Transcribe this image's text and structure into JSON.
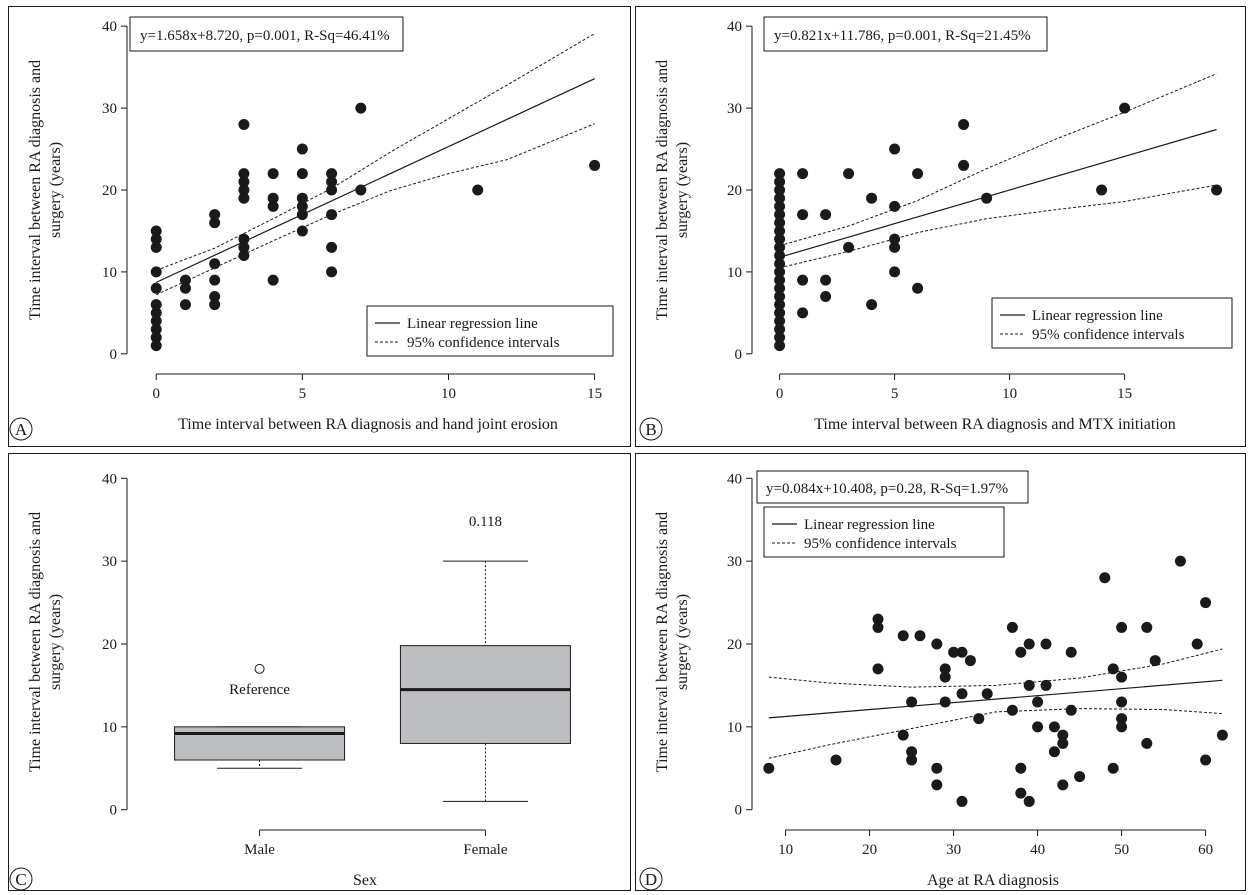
{
  "chart_data": [
    {
      "panel": "A",
      "type": "scatter",
      "equation": "y=1.658x+8.720, p=0.001, R-Sq=46.41%",
      "xlabel": "Time interval between RA diagnosis and hand joint erosion",
      "ylabel_line1": "Time interval between RA diagnosis and",
      "ylabel_line2": "surgery (years)",
      "xlim": [
        -1,
        15.8
      ],
      "ylim": [
        -1,
        41
      ],
      "xticks": [
        0,
        5,
        10,
        15
      ],
      "yticks": [
        0,
        10,
        20,
        30,
        40
      ],
      "legend": {
        "position": "bottom-right",
        "entries": [
          "Linear regression line",
          "95% confidence intervals"
        ]
      },
      "points": [
        [
          0,
          1
        ],
        [
          0,
          2
        ],
        [
          0,
          3
        ],
        [
          0,
          4
        ],
        [
          0,
          5
        ],
        [
          0,
          6
        ],
        [
          0,
          8
        ],
        [
          0,
          10
        ],
        [
          0,
          13
        ],
        [
          0,
          14
        ],
        [
          0,
          15
        ],
        [
          1,
          6
        ],
        [
          1,
          8
        ],
        [
          1,
          9
        ],
        [
          2,
          6
        ],
        [
          2,
          7
        ],
        [
          2,
          9
        ],
        [
          2,
          11
        ],
        [
          2,
          16
        ],
        [
          2,
          17
        ],
        [
          3,
          12
        ],
        [
          3,
          13
        ],
        [
          3,
          14
        ],
        [
          3,
          19
        ],
        [
          3,
          20
        ],
        [
          3,
          21
        ],
        [
          3,
          22
        ],
        [
          3,
          28
        ],
        [
          4,
          9
        ],
        [
          4,
          18
        ],
        [
          4,
          19
        ],
        [
          4,
          22
        ],
        [
          5,
          15
        ],
        [
          5,
          17
        ],
        [
          5,
          18
        ],
        [
          5,
          19
        ],
        [
          5,
          22
        ],
        [
          5,
          25
        ],
        [
          6,
          10
        ],
        [
          6,
          13
        ],
        [
          6,
          17
        ],
        [
          6,
          20
        ],
        [
          6,
          21
        ],
        [
          6,
          22
        ],
        [
          7,
          20
        ],
        [
          7,
          30
        ],
        [
          11,
          20
        ],
        [
          15,
          23
        ]
      ],
      "fit": {
        "slope": 1.658,
        "intercept": 8.72
      },
      "ci_lower": [
        [
          0,
          7.2
        ],
        [
          2,
          10.5
        ],
        [
          4,
          13.8
        ],
        [
          6,
          17.0
        ],
        [
          8,
          19.9
        ],
        [
          10,
          22.0
        ],
        [
          12,
          23.7
        ],
        [
          15,
          28.1
        ]
      ],
      "ci_upper": [
        [
          0,
          10.2
        ],
        [
          2,
          12.9
        ],
        [
          4,
          16.5
        ],
        [
          6,
          20.2
        ],
        [
          8,
          24.6
        ],
        [
          10,
          28.7
        ],
        [
          12,
          32.8
        ],
        [
          15,
          39.1
        ]
      ]
    },
    {
      "panel": "B",
      "type": "scatter",
      "equation": "y=0.821x+11.786, p=0.001, R-Sq=21.45%",
      "xlabel": "Time interval between RA diagnosis and MTX initiation",
      "ylabel_line1": "Time interval between RA diagnosis and",
      "ylabel_line2": "surgery (years)",
      "xlim": [
        -1.2,
        19.8
      ],
      "ylim": [
        -1,
        41
      ],
      "xticks": [
        0,
        5,
        10,
        15
      ],
      "yticks": [
        0,
        10,
        20,
        30,
        40
      ],
      "legend": {
        "position": "bottom-right",
        "entries": [
          "Linear regression line",
          "95% confidence intervals"
        ]
      },
      "points": [
        [
          0,
          1
        ],
        [
          0,
          2
        ],
        [
          0,
          3
        ],
        [
          0,
          4
        ],
        [
          0,
          5
        ],
        [
          0,
          6
        ],
        [
          0,
          7
        ],
        [
          0,
          8
        ],
        [
          0,
          9
        ],
        [
          0,
          10
        ],
        [
          0,
          11
        ],
        [
          0,
          12
        ],
        [
          0,
          13
        ],
        [
          0,
          14
        ],
        [
          0,
          15
        ],
        [
          0,
          16
        ],
        [
          0,
          17
        ],
        [
          0,
          18
        ],
        [
          0,
          19
        ],
        [
          0,
          20
        ],
        [
          0,
          21
        ],
        [
          0,
          22
        ],
        [
          1,
          5
        ],
        [
          1,
          9
        ],
        [
          1,
          17
        ],
        [
          1,
          22
        ],
        [
          2,
          7
        ],
        [
          2,
          9
        ],
        [
          2,
          17
        ],
        [
          3,
          13
        ],
        [
          3,
          22
        ],
        [
          4,
          6
        ],
        [
          4,
          19
        ],
        [
          5,
          10
        ],
        [
          5,
          13
        ],
        [
          5,
          14
        ],
        [
          5,
          18
        ],
        [
          5,
          25
        ],
        [
          6,
          8
        ],
        [
          6,
          22
        ],
        [
          8,
          23
        ],
        [
          8,
          28
        ],
        [
          9,
          19
        ],
        [
          14,
          20
        ],
        [
          15,
          30
        ],
        [
          19,
          20
        ]
      ],
      "fit": {
        "slope": 0.821,
        "intercept": 11.786
      },
      "ci_lower": [
        [
          0,
          10.5
        ],
        [
          3,
          12.5
        ],
        [
          6,
          14.8
        ],
        [
          9,
          16.5
        ],
        [
          12,
          17.6
        ],
        [
          15,
          18.6
        ],
        [
          19,
          20.6
        ]
      ],
      "ci_upper": [
        [
          0,
          13.2
        ],
        [
          3,
          15.6
        ],
        [
          6,
          18.7
        ],
        [
          9,
          22.6
        ],
        [
          12,
          26.2
        ],
        [
          15,
          29.5
        ],
        [
          19,
          34.2
        ]
      ]
    },
    {
      "panel": "C",
      "type": "box",
      "xlabel": "Sex",
      "ylabel_line1": "Time interval between RA diagnosis and",
      "ylabel_line2": "surgery (years)",
      "ylim": [
        -1,
        41
      ],
      "yticks": [
        0,
        10,
        20,
        30,
        40
      ],
      "groups": [
        {
          "name": "Male",
          "whisker_low": 5,
          "q1": 6,
          "median": 9.2,
          "q3": 10,
          "whisker_high": 10,
          "outliers": [
            17
          ],
          "label": "Reference"
        },
        {
          "name": "Female",
          "whisker_low": 1,
          "q1": 8,
          "median": 14.5,
          "q3": 19.8,
          "whisker_high": 30,
          "outliers": [],
          "label": "0.118"
        }
      ]
    },
    {
      "panel": "D",
      "type": "scatter",
      "equation": "y=0.084x+10.408, p=0.28, R-Sq=1.97%",
      "xlabel": "Age at RA diagnosis",
      "ylabel_line1": "Time interval between RA diagnosis and",
      "ylabel_line2": "surgery (years)",
      "xlim": [
        6,
        63.5
      ],
      "ylim": [
        -1,
        41
      ],
      "xticks": [
        10,
        20,
        30,
        40,
        50,
        60
      ],
      "yticks": [
        0,
        10,
        20,
        30,
        40
      ],
      "legend": {
        "position": "top-left",
        "entries": [
          "Linear regression line",
          "95% confidence intervals"
        ]
      },
      "points": [
        [
          8,
          5
        ],
        [
          16,
          6
        ],
        [
          21,
          22
        ],
        [
          21,
          23
        ],
        [
          21,
          17
        ],
        [
          24,
          9
        ],
        [
          24,
          21
        ],
        [
          25,
          13
        ],
        [
          25,
          7
        ],
        [
          25,
          6
        ],
        [
          26,
          21
        ],
        [
          28,
          20
        ],
        [
          28,
          5
        ],
        [
          28,
          3
        ],
        [
          29,
          17
        ],
        [
          29,
          16
        ],
        [
          29,
          13
        ],
        [
          30,
          19
        ],
        [
          31,
          19
        ],
        [
          31,
          14
        ],
        [
          31,
          1
        ],
        [
          32,
          18
        ],
        [
          33,
          11
        ],
        [
          34,
          14
        ],
        [
          37,
          22
        ],
        [
          37,
          12
        ],
        [
          38,
          19
        ],
        [
          38,
          5
        ],
        [
          38,
          2
        ],
        [
          39,
          20
        ],
        [
          39,
          15
        ],
        [
          39,
          1
        ],
        [
          40,
          13
        ],
        [
          40,
          10
        ],
        [
          41,
          20
        ],
        [
          41,
          15
        ],
        [
          42,
          10
        ],
        [
          42,
          7
        ],
        [
          43,
          9
        ],
        [
          43,
          8
        ],
        [
          43,
          3
        ],
        [
          44,
          19
        ],
        [
          44,
          12
        ],
        [
          45,
          4
        ],
        [
          48,
          28
        ],
        [
          49,
          17
        ],
        [
          49,
          5
        ],
        [
          50,
          22
        ],
        [
          50,
          16
        ],
        [
          50,
          13
        ],
        [
          50,
          11
        ],
        [
          50,
          10
        ],
        [
          53,
          22
        ],
        [
          53,
          8
        ],
        [
          54,
          18
        ],
        [
          57,
          30
        ],
        [
          59,
          20
        ],
        [
          60,
          25
        ],
        [
          60,
          6
        ],
        [
          62,
          9
        ]
      ],
      "fit": {
        "slope": 0.084,
        "intercept": 10.408
      },
      "ci_lower": [
        [
          8,
          6.2
        ],
        [
          15,
          7.8
        ],
        [
          25,
          9.8
        ],
        [
          35,
          11.8
        ],
        [
          45,
          12.2
        ],
        [
          55,
          12.1
        ],
        [
          62,
          11.6
        ]
      ],
      "ci_upper": [
        [
          8,
          16.0
        ],
        [
          15,
          15.3
        ],
        [
          25,
          14.8
        ],
        [
          35,
          15.0
        ],
        [
          45,
          15.9
        ],
        [
          55,
          17.6
        ],
        [
          62,
          19.4
        ]
      ]
    }
  ]
}
